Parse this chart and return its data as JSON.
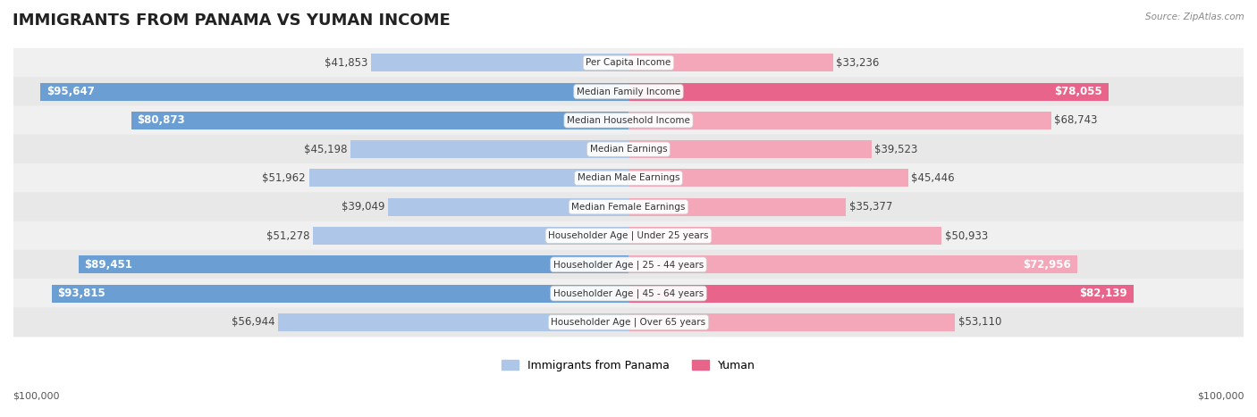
{
  "title": "IMMIGRANTS FROM PANAMA VS YUMAN INCOME",
  "source": "Source: ZipAtlas.com",
  "categories": [
    "Per Capita Income",
    "Median Family Income",
    "Median Household Income",
    "Median Earnings",
    "Median Male Earnings",
    "Median Female Earnings",
    "Householder Age | Under 25 years",
    "Householder Age | 25 - 44 years",
    "Householder Age | 45 - 64 years",
    "Householder Age | Over 65 years"
  ],
  "panama_values": [
    41853,
    95647,
    80873,
    45198,
    51962,
    39049,
    51278,
    89451,
    93815,
    56944
  ],
  "yuman_values": [
    33236,
    78055,
    68743,
    39523,
    45446,
    35377,
    50933,
    72956,
    82139,
    53110
  ],
  "panama_labels": [
    "$41,853",
    "$95,647",
    "$80,873",
    "$45,198",
    "$51,962",
    "$39,049",
    "$51,278",
    "$89,451",
    "$93,815",
    "$56,944"
  ],
  "yuman_labels": [
    "$33,236",
    "$78,055",
    "$68,743",
    "$39,523",
    "$45,446",
    "$35,377",
    "$50,933",
    "$72,956",
    "$82,139",
    "$53,110"
  ],
  "max_value": 100000,
  "panama_color_light": "#aec6e8",
  "panama_color_dark": "#6b9fd4",
  "yuman_color_light": "#f4a7b9",
  "yuman_color_dark": "#e8648a",
  "background_color": "#f5f5f5",
  "bar_bg_color": "#e8e8e8",
  "legend_panama": "Immigrants from Panama",
  "legend_yuman": "Yuman",
  "xlabel_left": "$100,000",
  "xlabel_right": "$100,000",
  "title_fontsize": 13,
  "label_fontsize": 8.5,
  "bar_height": 0.62,
  "row_bg_colors": [
    "#f0f0f0",
    "#e8e8e8"
  ]
}
